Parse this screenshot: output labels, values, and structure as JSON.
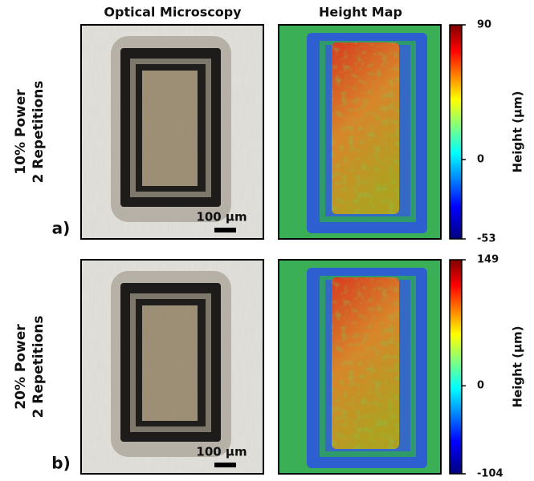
{
  "columns": [
    "Optical Microscopy",
    "Height Map"
  ],
  "rows": [
    {
      "label": "a)",
      "condition": [
        "10% Power",
        "2 Repetitions"
      ],
      "scale_bar": "100 μm",
      "colorbar": {
        "label": "Height (μm)",
        "ticks": [
          90,
          0,
          -53
        ]
      }
    },
    {
      "label": "b)",
      "condition": [
        "20% Power",
        "2 Repetitions"
      ],
      "scale_bar": "100 μm",
      "colorbar": {
        "label": "Height (μm)",
        "ticks": [
          149,
          0,
          -104
        ]
      }
    }
  ]
}
